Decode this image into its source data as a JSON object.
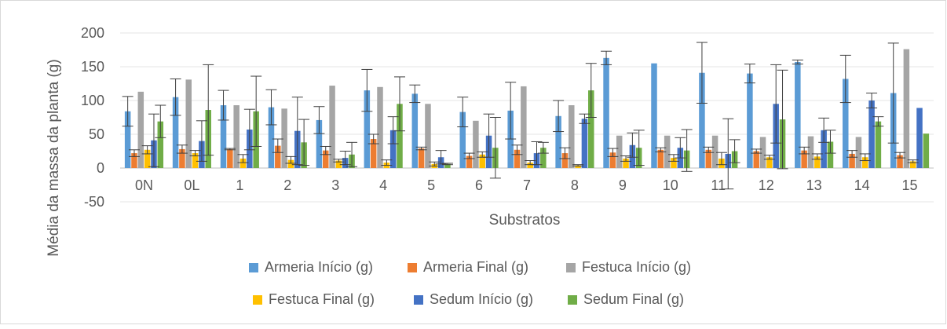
{
  "chart_data": {
    "type": "bar",
    "title": "",
    "xlabel": "Substratos",
    "ylabel": "Média da massa da planta (g)",
    "ylim": [
      -50,
      200
    ],
    "yticks": [
      -50,
      0,
      50,
      100,
      150,
      200
    ],
    "grid": true,
    "legend_position": "bottom",
    "categories": [
      "0N",
      "0L",
      "1",
      "2",
      "3",
      "4",
      "5",
      "6",
      "7",
      "8",
      "9",
      "10",
      "11",
      "12",
      "13",
      "14",
      "15"
    ],
    "series": [
      {
        "name": "Armeria Início (g)",
        "color": "#5b9bd5",
        "values": [
          84,
          105,
          93,
          90,
          71,
          115,
          110,
          83,
          85,
          77,
          163,
          155,
          141,
          140,
          157,
          132,
          111
        ],
        "errors": [
          22,
          27,
          22,
          26,
          20,
          31,
          13,
          22,
          42,
          23,
          10,
          0,
          45,
          14,
          3,
          35,
          74
        ]
      },
      {
        "name": "Armeria Final (g)",
        "color": "#ed7d31",
        "values": [
          22,
          28,
          28,
          33,
          26,
          43,
          29,
          18,
          27,
          22,
          23,
          27,
          27,
          25,
          26,
          21,
          19
        ],
        "errors": [
          5,
          6,
          1,
          10,
          6,
          7,
          2,
          4,
          7,
          8,
          6,
          3,
          4,
          3,
          5,
          5,
          4
        ]
      },
      {
        "name": "Festuca Início (g)",
        "color": "#a5a5a5",
        "values": [
          113,
          131,
          93,
          88,
          122,
          120,
          95,
          70,
          121,
          93,
          48,
          48,
          48,
          46,
          47,
          46,
          176
        ]
      },
      {
        "name": "Festuca Final (g)",
        "color": "#ffc000",
        "values": [
          27,
          22,
          14,
          12,
          11,
          8,
          6,
          20,
          8,
          4,
          14,
          15,
          14,
          16,
          17,
          16,
          10
        ],
        "errors": [
          6,
          4,
          6,
          5,
          2,
          4,
          3,
          4,
          3,
          1,
          4,
          5,
          9,
          3,
          4,
          5,
          2
        ]
      },
      {
        "name": "Sedum Início (g)",
        "color": "#4472c4",
        "values": [
          41,
          40,
          57,
          55,
          15,
          56,
          16,
          48,
          22,
          73,
          34,
          30,
          21,
          95,
          56,
          100,
          89
        ],
        "errors": [
          39,
          30,
          30,
          50,
          10,
          20,
          10,
          32,
          17,
          7,
          18,
          15,
          52,
          58,
          18,
          11,
          0
        ]
      },
      {
        "name": "Sedum Final (g)",
        "color": "#70ad47",
        "values": [
          69,
          86,
          84,
          38,
          20,
          95,
          6,
          30,
          30,
          115,
          30,
          26,
          25,
          72,
          39,
          69,
          51
        ],
        "errors": [
          24,
          67,
          52,
          34,
          18,
          40,
          1,
          45,
          8,
          40,
          26,
          31,
          17,
          73,
          17,
          7,
          0
        ]
      }
    ]
  }
}
